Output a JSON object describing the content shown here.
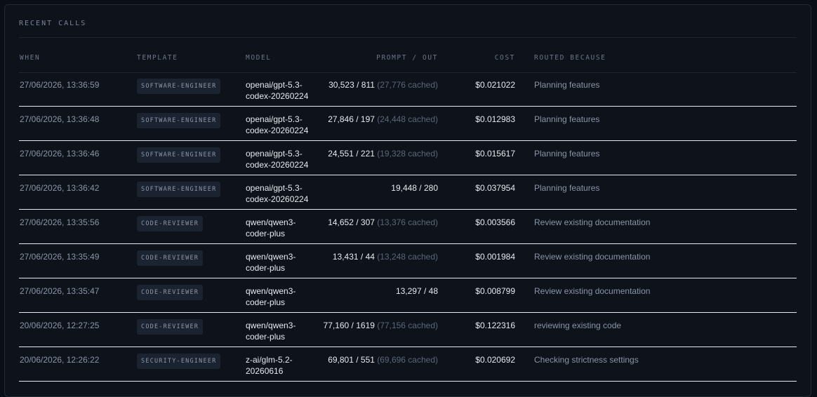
{
  "panel": {
    "title": "RECENT CALLS"
  },
  "columns": {
    "when": "WHEN",
    "template": "TEMPLATE",
    "model": "MODEL",
    "prompt_out": "PROMPT / OUT",
    "cost": "COST",
    "routed_because": "ROUTED BECAUSE"
  },
  "rows": [
    {
      "when": "27/06/2026, 13:36:59",
      "template": "SOFTWARE-ENGINEER",
      "model_1": "openai/gpt-5.3-",
      "model_2": "codex-20260224",
      "prompt_out": "30,523 / 811",
      "cached": "(27,776 cached)",
      "cost": "$0.021022",
      "reason": "Planning features"
    },
    {
      "when": "27/06/2026, 13:36:48",
      "template": "SOFTWARE-ENGINEER",
      "model_1": "openai/gpt-5.3-",
      "model_2": "codex-20260224",
      "prompt_out": "27,846 / 197",
      "cached": "(24,448 cached)",
      "cost": "$0.012983",
      "reason": "Planning features"
    },
    {
      "when": "27/06/2026, 13:36:46",
      "template": "SOFTWARE-ENGINEER",
      "model_1": "openai/gpt-5.3-",
      "model_2": "codex-20260224",
      "prompt_out": "24,551 / 221",
      "cached": "(19,328 cached)",
      "cost": "$0.015617",
      "reason": "Planning features"
    },
    {
      "when": "27/06/2026, 13:36:42",
      "template": "SOFTWARE-ENGINEER",
      "model_1": "openai/gpt-5.3-",
      "model_2": "codex-20260224",
      "prompt_out": "19,448 / 280",
      "cached": "",
      "cost": "$0.037954",
      "reason": "Planning features"
    },
    {
      "when": "27/06/2026, 13:35:56",
      "template": "CODE-REVIEWER",
      "model_1": "qwen/qwen3-",
      "model_2": "coder-plus",
      "prompt_out": "14,652 / 307",
      "cached": "(13,376 cached)",
      "cost": "$0.003566",
      "reason": "Review existing documentation"
    },
    {
      "when": "27/06/2026, 13:35:49",
      "template": "CODE-REVIEWER",
      "model_1": "qwen/qwen3-",
      "model_2": "coder-plus",
      "prompt_out": "13,431 / 44",
      "cached": "(13,248 cached)",
      "cost": "$0.001984",
      "reason": "Review existing documentation"
    },
    {
      "when": "27/06/2026, 13:35:47",
      "template": "CODE-REVIEWER",
      "model_1": "qwen/qwen3-",
      "model_2": "coder-plus",
      "prompt_out": "13,297 / 48",
      "cached": "",
      "cost": "$0.008799",
      "reason": "Review existing documentation"
    },
    {
      "when": "20/06/2026, 12:27:25",
      "template": "CODE-REVIEWER",
      "model_1": "qwen/qwen3-",
      "model_2": "coder-plus",
      "prompt_out": "77,160 / 1619",
      "cached": "(77,156 cached)",
      "cost": "$0.122316",
      "reason": "reviewing existing code"
    },
    {
      "when": "20/06/2026, 12:26:22",
      "template": "SECURITY-ENGINEER",
      "model_1": "z-ai/glm-5.2-",
      "model_2": "20260616",
      "prompt_out": "69,801 / 551",
      "cached": "(69,696 cached)",
      "cost": "$0.020692",
      "reason": "Checking strictness settings"
    }
  ]
}
